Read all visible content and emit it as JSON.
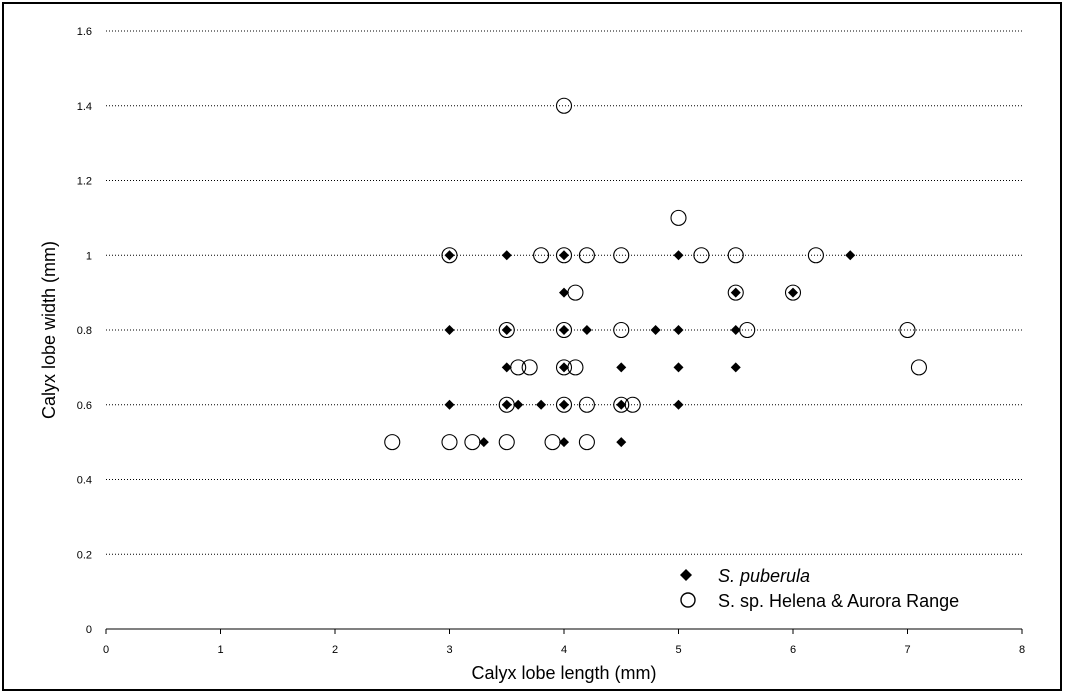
{
  "chart_data": {
    "type": "scatter",
    "xlabel": "Calyx lobe length (mm)",
    "ylabel": "Calyx lobe width (mm)",
    "xlim": [
      0,
      8
    ],
    "ylim": [
      0,
      1.6
    ],
    "x_ticks": [
      "0",
      "1",
      "2",
      "3",
      "4",
      "5",
      "6",
      "7",
      "8"
    ],
    "y_ticks": [
      "0",
      "0.2",
      "0.4",
      "0.6",
      "0.8",
      "1",
      "1.2",
      "1.4",
      "1.6"
    ],
    "grid": "horizontal dotted",
    "legend_position": "bottom-right",
    "series": [
      {
        "name": "S. puberula",
        "name_italic": true,
        "marker": "diamond-filled",
        "color": "#000000",
        "points": [
          [
            3.0,
            1.0
          ],
          [
            3.5,
            1.0
          ],
          [
            4.0,
            1.0
          ],
          [
            5.0,
            1.0
          ],
          [
            6.5,
            1.0
          ],
          [
            4.0,
            0.9
          ],
          [
            5.5,
            0.9
          ],
          [
            6.0,
            0.9
          ],
          [
            3.0,
            0.8
          ],
          [
            3.5,
            0.8
          ],
          [
            4.0,
            0.8
          ],
          [
            4.2,
            0.8
          ],
          [
            4.8,
            0.8
          ],
          [
            5.0,
            0.8
          ],
          [
            5.5,
            0.8
          ],
          [
            3.5,
            0.7
          ],
          [
            4.0,
            0.7
          ],
          [
            4.5,
            0.7
          ],
          [
            5.0,
            0.7
          ],
          [
            5.5,
            0.7
          ],
          [
            3.0,
            0.6
          ],
          [
            3.5,
            0.6
          ],
          [
            3.6,
            0.6
          ],
          [
            3.8,
            0.6
          ],
          [
            4.0,
            0.6
          ],
          [
            4.5,
            0.6
          ],
          [
            5.0,
            0.6
          ],
          [
            3.3,
            0.5
          ],
          [
            4.0,
            0.5
          ],
          [
            4.5,
            0.5
          ]
        ]
      },
      {
        "name": "S. sp. Helena & Aurora Range",
        "name_italic": false,
        "marker": "circle-open",
        "color": "#000000",
        "points": [
          [
            4.0,
            1.4
          ],
          [
            5.0,
            1.1
          ],
          [
            3.0,
            1.0
          ],
          [
            3.8,
            1.0
          ],
          [
            4.0,
            1.0
          ],
          [
            4.2,
            1.0
          ],
          [
            4.5,
            1.0
          ],
          [
            5.2,
            1.0
          ],
          [
            5.5,
            1.0
          ],
          [
            6.2,
            1.0
          ],
          [
            4.1,
            0.9
          ],
          [
            5.5,
            0.9
          ],
          [
            6.0,
            0.9
          ],
          [
            3.5,
            0.8
          ],
          [
            4.0,
            0.8
          ],
          [
            4.5,
            0.8
          ],
          [
            5.6,
            0.8
          ],
          [
            7.0,
            0.8
          ],
          [
            3.6,
            0.7
          ],
          [
            3.7,
            0.7
          ],
          [
            4.0,
            0.7
          ],
          [
            4.1,
            0.7
          ],
          [
            7.1,
            0.7
          ],
          [
            3.5,
            0.6
          ],
          [
            4.0,
            0.6
          ],
          [
            4.2,
            0.6
          ],
          [
            4.5,
            0.6
          ],
          [
            4.6,
            0.6
          ],
          [
            2.5,
            0.5
          ],
          [
            3.0,
            0.5
          ],
          [
            3.2,
            0.5
          ],
          [
            3.5,
            0.5
          ],
          [
            3.9,
            0.5
          ],
          [
            4.2,
            0.5
          ]
        ]
      }
    ]
  }
}
